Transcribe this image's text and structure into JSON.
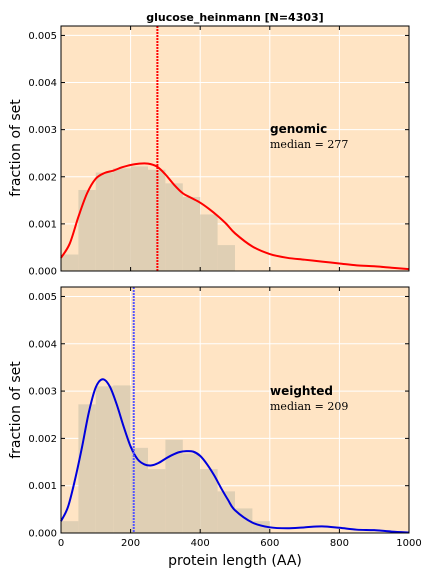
{
  "chart_data": {
    "title": "glucose_heinmann [N=4303]",
    "xlabel": "protein length (AA)",
    "xlim": [
      0,
      1000
    ],
    "xticks": [
      "0",
      "200",
      "400",
      "600",
      "800",
      "1000"
    ],
    "colors": {
      "background": "#ffe4c4",
      "hist_bar": "#dfcfb4",
      "grid": "#ffffff"
    },
    "panels": [
      {
        "type": "bar+line",
        "ylabel": "fraction of set",
        "ylim": [
          0,
          0.0052
        ],
        "yticks": [
          "0.000",
          "0.001",
          "0.002",
          "0.003",
          "0.004",
          "0.005"
        ],
        "annotation_label": "genomic",
        "annotation_median": "median = 277",
        "median": 277,
        "line_color": "#ff0000",
        "median_color": "#ff0000",
        "bin_edges": [
          0,
          50,
          100,
          150,
          200,
          250,
          300,
          350,
          400,
          450,
          500
        ],
        "hist_values": [
          0.00035,
          0.00172,
          0.00209,
          0.00218,
          0.00222,
          0.00215,
          0.00186,
          0.00157,
          0.0012,
          0.00055
        ],
        "kde_x": [
          0,
          25,
          50,
          75,
          100,
          125,
          150,
          175,
          200,
          225,
          250,
          275,
          300,
          325,
          350,
          375,
          400,
          425,
          450,
          475,
          500,
          550,
          600,
          650,
          700,
          750,
          800,
          850,
          900,
          950,
          1000
        ],
        "kde_y": [
          0.00028,
          0.00058,
          0.00115,
          0.00165,
          0.00196,
          0.00208,
          0.00213,
          0.0022,
          0.00225,
          0.00228,
          0.00228,
          0.00222,
          0.00205,
          0.00183,
          0.00165,
          0.00155,
          0.00145,
          0.00132,
          0.00117,
          0.001,
          0.0008,
          0.00052,
          0.00036,
          0.00028,
          0.00024,
          0.0002,
          0.00016,
          0.00012,
          0.0001,
          7e-05,
          4e-05
        ]
      },
      {
        "type": "bar+line",
        "ylabel": "fraction of set",
        "ylim": [
          0,
          0.0052
        ],
        "yticks": [
          "0.000",
          "0.001",
          "0.002",
          "0.003",
          "0.004",
          "0.005"
        ],
        "annotation_label": "weighted",
        "annotation_median": "median = 209",
        "median": 209,
        "line_color": "#0000dd",
        "median_color": "#5555ff",
        "bin_edges": [
          0,
          50,
          100,
          150,
          200,
          250,
          300,
          350,
          400,
          450,
          500,
          550,
          600
        ],
        "hist_values": [
          0.00025,
          0.00272,
          0.0031,
          0.00312,
          0.0018,
          0.00135,
          0.00197,
          0.00168,
          0.00135,
          0.00088,
          0.00052,
          0.00025
        ],
        "kde_x": [
          0,
          20,
          40,
          60,
          80,
          100,
          120,
          140,
          160,
          180,
          200,
          220,
          240,
          260,
          280,
          300,
          320,
          340,
          360,
          380,
          400,
          420,
          440,
          460,
          480,
          500,
          550,
          600,
          650,
          700,
          750,
          800,
          850,
          900,
          950,
          1000
        ],
        "kde_y": [
          0.00025,
          0.00055,
          0.00112,
          0.0018,
          0.00255,
          0.00308,
          0.00325,
          0.0031,
          0.00272,
          0.00225,
          0.00183,
          0.00156,
          0.00145,
          0.00143,
          0.00148,
          0.00157,
          0.00165,
          0.00171,
          0.00173,
          0.00172,
          0.00163,
          0.00145,
          0.00122,
          0.00095,
          0.0007,
          0.00048,
          0.00022,
          0.00012,
          0.0001,
          0.00012,
          0.00014,
          0.00011,
          7e-05,
          6e-05,
          3e-05,
          1e-05
        ]
      }
    ]
  }
}
